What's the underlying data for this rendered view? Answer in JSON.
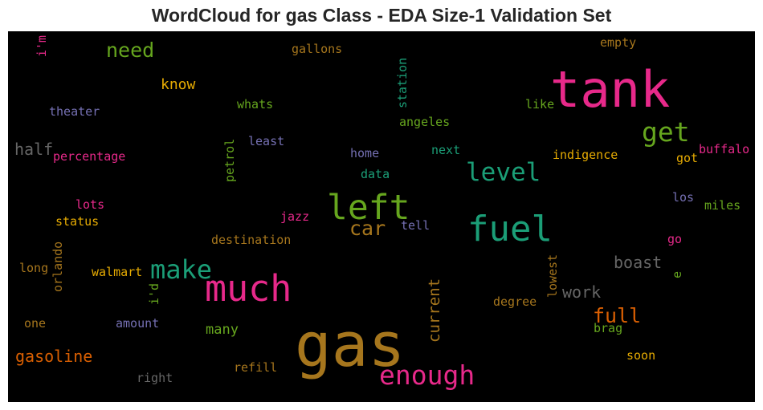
{
  "chart_data": {
    "type": "wordcloud",
    "title": "WordCloud for gas Class - EDA Size-1 Validation Set",
    "background": "#000000",
    "words": [
      {
        "text": "gas",
        "color": "#a6761d"
      },
      {
        "text": "tank",
        "color": "#e7298a"
      },
      {
        "text": "much",
        "color": "#e7298a"
      },
      {
        "text": "fuel",
        "color": "#1b9e77"
      },
      {
        "text": "left",
        "color": "#66a61e"
      },
      {
        "text": "enough",
        "color": "#e7298a"
      },
      {
        "text": "make",
        "color": "#1b9e77"
      },
      {
        "text": "get",
        "color": "#66a61e"
      },
      {
        "text": "level",
        "color": "#1b9e77"
      },
      {
        "text": "car",
        "color": "#a6761d"
      },
      {
        "text": "need",
        "color": "#66a61e"
      },
      {
        "text": "full",
        "color": "#d95f02"
      },
      {
        "text": "gasoline",
        "color": "#d95f02"
      },
      {
        "text": "boast",
        "color": "#666666"
      },
      {
        "text": "work",
        "color": "#666666"
      },
      {
        "text": "half",
        "color": "#666666"
      },
      {
        "text": "current",
        "color": "#a6761d"
      },
      {
        "text": "know",
        "color": "#e6ab02"
      },
      {
        "text": "many",
        "color": "#66a61e"
      },
      {
        "text": "station",
        "color": "#1b9e77"
      },
      {
        "text": "indigence",
        "color": "#e6ab02"
      },
      {
        "text": "destination",
        "color": "#a6761d"
      },
      {
        "text": "walmart",
        "color": "#e6ab02"
      },
      {
        "text": "percentage",
        "color": "#e7298a"
      },
      {
        "text": "theater",
        "color": "#7570b3"
      },
      {
        "text": "gallons",
        "color": "#a6761d"
      },
      {
        "text": "empty",
        "color": "#a6761d"
      },
      {
        "text": "buffalo",
        "color": "#e7298a"
      },
      {
        "text": "petrol",
        "color": "#66a61e"
      },
      {
        "text": "angeles",
        "color": "#66a61e"
      },
      {
        "text": "whats",
        "color": "#66a61e"
      },
      {
        "text": "like",
        "color": "#66a61e"
      },
      {
        "text": "least",
        "color": "#7570b3"
      },
      {
        "text": "home",
        "color": "#7570b3"
      },
      {
        "text": "next",
        "color": "#1b9e77"
      },
      {
        "text": "data",
        "color": "#1b9e77"
      },
      {
        "text": "got",
        "color": "#e6ab02"
      },
      {
        "text": "status",
        "color": "#e6ab02"
      },
      {
        "text": "lots",
        "color": "#e7298a"
      },
      {
        "text": "jazz",
        "color": "#e7298a"
      },
      {
        "text": "tell",
        "color": "#7570b3"
      },
      {
        "text": "los",
        "color": "#7570b3"
      },
      {
        "text": "miles",
        "color": "#66a61e"
      },
      {
        "text": "orlando",
        "color": "#a6761d"
      },
      {
        "text": "long",
        "color": "#a6761d"
      },
      {
        "text": "i'd",
        "color": "#66a61e"
      },
      {
        "text": "i'm",
        "color": "#e7298a"
      },
      {
        "text": "lowest",
        "color": "#a6761d"
      },
      {
        "text": "go",
        "color": "#e7298a"
      },
      {
        "text": "e",
        "color": "#66a61e"
      },
      {
        "text": "degree",
        "color": "#a6761d"
      },
      {
        "text": "one",
        "color": "#a6761d"
      },
      {
        "text": "amount",
        "color": "#7570b3"
      },
      {
        "text": "brag",
        "color": "#66a61e"
      },
      {
        "text": "refill",
        "color": "#a6761d"
      },
      {
        "text": "right",
        "color": "#666666"
      },
      {
        "text": "soon",
        "color": "#e6ab02"
      }
    ]
  }
}
